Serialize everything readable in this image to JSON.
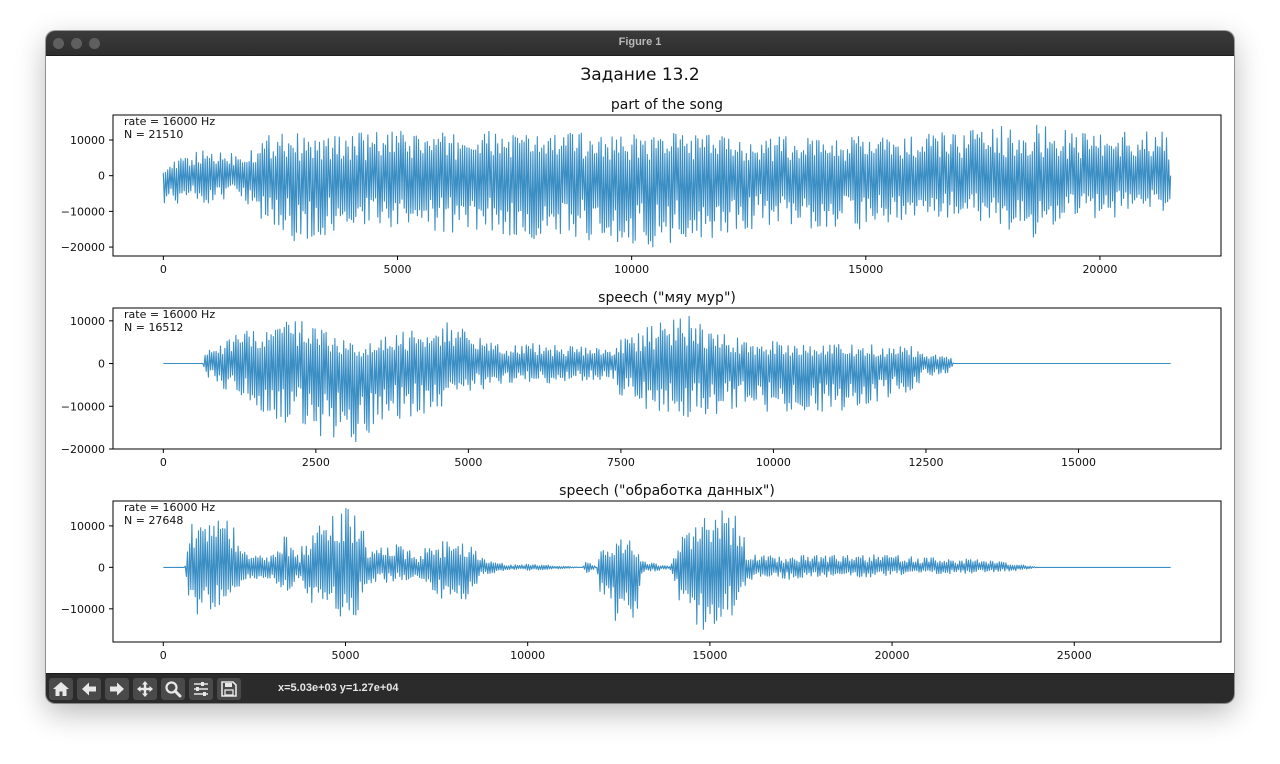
{
  "window": {
    "title": "Figure 1"
  },
  "figure": {
    "suptitle": "Задание 13.2",
    "line_color": "#3a8ec4"
  },
  "toolbar": {
    "buttons": [
      "home-icon",
      "back-arrow-icon",
      "forward-arrow-icon",
      "pan-icon",
      "zoom-icon",
      "configure-subplots-icon",
      "save-icon"
    ],
    "coords": "x=5.03e+03 y=1.27e+04"
  },
  "chart_data": [
    {
      "type": "line",
      "title": "part of the song",
      "annotation": [
        "rate = 16000 Hz",
        "N = 21510"
      ],
      "xlabel": "",
      "ylabel": "",
      "xlim": [
        -1075,
        22585
      ],
      "ylim": [
        -22500,
        17000
      ],
      "xticks": [
        0,
        5000,
        10000,
        15000,
        20000
      ],
      "xtick_labels": [
        "0",
        "5000",
        "10000",
        "15000",
        "20000"
      ],
      "yticks": [
        10000,
        0,
        -10000,
        -20000
      ],
      "ytick_labels": [
        "10000",
        "0",
        "−10000",
        "−20000"
      ],
      "n_samples": 21510,
      "envelope": {
        "x": [
          0,
          500,
          1000,
          1500,
          2000,
          2500,
          3000,
          3500,
          4000,
          5000,
          6000,
          7000,
          8000,
          9000,
          10000,
          11000,
          12000,
          13000,
          14000,
          15000,
          16000,
          17000,
          18000,
          18500,
          19000,
          20000,
          21000,
          21509
        ],
        "max": [
          2000,
          6000,
          7500,
          7000,
          9000,
          14500,
          11000,
          11000,
          12000,
          12500,
          12000,
          12500,
          12000,
          12500,
          11500,
          12500,
          11000,
          11000,
          11000,
          11000,
          11000,
          13000,
          14000,
          15500,
          13000,
          13000,
          13000,
          12000
        ],
        "min": [
          -8000,
          -7500,
          -8000,
          -6500,
          -12000,
          -15000,
          -20500,
          -17000,
          -15000,
          -15500,
          -16000,
          -16500,
          -18000,
          -18000,
          -21000,
          -19000,
          -17000,
          -13500,
          -15000,
          -15000,
          -12000,
          -12000,
          -15000,
          -18000,
          -14000,
          -12000,
          -11000,
          -10000
        ]
      }
    },
    {
      "type": "line",
      "title": "speech (\"мяу мур\")",
      "annotation": [
        "rate = 16000 Hz",
        "N = 16512"
      ],
      "xlabel": "",
      "ylabel": "",
      "xlim": [
        -825,
        17336
      ],
      "ylim": [
        -20000,
        13000
      ],
      "xticks": [
        0,
        2500,
        5000,
        7500,
        10000,
        12500,
        15000
      ],
      "xtick_labels": [
        "0",
        "2500",
        "5000",
        "7500",
        "10000",
        "12500",
        "15000"
      ],
      "yticks": [
        10000,
        0,
        -10000,
        -20000
      ],
      "ytick_labels": [
        "10000",
        "0",
        "−10000",
        "−20000"
      ],
      "n_samples": 16512,
      "envelope": {
        "x": [
          0,
          600,
          650,
          700,
          1200,
          1800,
          2300,
          2600,
          3000,
          3200,
          3600,
          4200,
          4600,
          4800,
          5100,
          5500,
          6500,
          7400,
          7500,
          8000,
          8600,
          9000,
          9500,
          10500,
          11500,
          12300,
          12500,
          12700,
          12900,
          12950,
          13000,
          16511
        ],
        "max": [
          0,
          0,
          0,
          3000,
          7000,
          9000,
          10500,
          9000,
          5000,
          4000,
          6000,
          9000,
          11500,
          9000,
          6500,
          5000,
          4500,
          3500,
          6000,
          9000,
          11500,
          9000,
          6000,
          4500,
          4500,
          4000,
          2000,
          2000,
          2000,
          0,
          0,
          0
        ],
        "min": [
          0,
          0,
          0,
          -3000,
          -8000,
          -13000,
          -16000,
          -17000,
          -18000,
          -18500,
          -14000,
          -12000,
          -10000,
          -9000,
          -6500,
          -5000,
          -4500,
          -3500,
          -8000,
          -11500,
          -12500,
          -12000,
          -11000,
          -11500,
          -11500,
          -6500,
          -3000,
          -2500,
          -2000,
          0,
          0,
          0
        ]
      }
    },
    {
      "type": "line",
      "title": "speech (\"обработка данных\")",
      "annotation": [
        "rate = 16000 Hz",
        "N = 27648"
      ],
      "xlabel": "",
      "ylabel": "",
      "xlim": [
        -1380,
        29027
      ],
      "ylim": [
        -18000,
        16000
      ],
      "xticks": [
        0,
        5000,
        10000,
        15000,
        20000,
        25000
      ],
      "xtick_labels": [
        "0",
        "5000",
        "10000",
        "15000",
        "20000",
        "25000"
      ],
      "yticks": [
        10000,
        0,
        -10000
      ],
      "ytick_labels": [
        "10000",
        "0",
        "−10000"
      ],
      "n_samples": 27648,
      "envelope": {
        "x": [
          0,
          600,
          700,
          800,
          1200,
          1700,
          2000,
          2100,
          2900,
          3200,
          3300,
          3600,
          3750,
          3800,
          4300,
          4900,
          5300,
          5500,
          5600,
          6500,
          6800,
          7000,
          7200,
          7900,
          8400,
          8700,
          8800,
          9500,
          10000,
          10500,
          11000,
          11500,
          11600,
          11900,
          12000,
          12300,
          12800,
          13000,
          13100,
          13900,
          14300,
          14500,
          15100,
          15600,
          15900,
          16000,
          17000,
          18000,
          19000,
          20000,
          21000,
          22000,
          23000,
          23500,
          24000,
          27647
        ],
        "max": [
          0,
          0,
          8000,
          13500,
          11500,
          12500,
          9000,
          5000,
          3000,
          6500,
          8500,
          5000,
          3000,
          5000,
          10500,
          14500,
          14000,
          9000,
          5000,
          5500,
          5000,
          2000,
          5000,
          7000,
          6500,
          3000,
          2000,
          600,
          800,
          600,
          300,
          0,
          2000,
          0,
          6000,
          6500,
          7000,
          6500,
          1500,
          300,
          9000,
          12000,
          14000,
          13500,
          10500,
          3000,
          3000,
          3000,
          3500,
          3000,
          2500,
          2000,
          1500,
          800,
          0,
          0
        ],
        "min": [
          0,
          0,
          -8000,
          -12500,
          -11000,
          -10500,
          -8000,
          -4000,
          -3000,
          -5500,
          -7000,
          -4000,
          -3000,
          -5000,
          -13500,
          -12500,
          -11500,
          -7000,
          -4000,
          -3500,
          -3000,
          -2000,
          -5000,
          -9000,
          -8000,
          -3000,
          -2000,
          -700,
          -800,
          -600,
          -300,
          0,
          -1500,
          0,
          -9000,
          -13000,
          -12500,
          -12000,
          -1500,
          -300,
          -12000,
          -17000,
          -14000,
          -12000,
          -10000,
          -3000,
          -3000,
          -2500,
          -2500,
          -2000,
          -1500,
          -1500,
          -1000,
          -800,
          0,
          0
        ]
      }
    }
  ]
}
